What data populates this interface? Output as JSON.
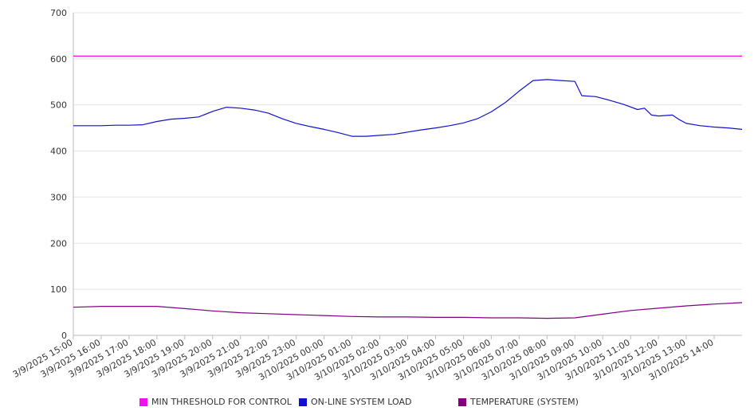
{
  "chart_data": {
    "type": "line",
    "title": "",
    "xlabel": "",
    "ylabel": "",
    "ylim": [
      0,
      700
    ],
    "yticks": [
      0,
      100,
      200,
      300,
      400,
      500,
      600,
      700
    ],
    "x_tick_labels": [
      "3/9/2025 15:00",
      "3/9/2025 16:00",
      "3/9/2025 17:00",
      "3/9/2025 18:00",
      "3/9/2025 19:00",
      "3/9/2025 20:00",
      "3/9/2025 21:00",
      "3/9/2025 22:00",
      "3/9/2025 23:00",
      "3/10/2025 00:00",
      "3/10/2025 01:00",
      "3/10/2025 02:00",
      "3/10/2025 03:00",
      "3/10/2025 04:00",
      "3/10/2025 05:00",
      "3/10/2025 06:00",
      "3/10/2025 07:00",
      "3/10/2025 08:00",
      "3/10/2025 09:00",
      "3/10/2025 10:00",
      "3/10/2025 11:00",
      "3/10/2025 12:00",
      "3/10/2025 13:00",
      "3/10/2025 14:00"
    ],
    "x_start": "3/9/2025 15:00",
    "x_end": "3/10/2025 15:00",
    "grid": true,
    "legend_position": "bottom",
    "series": [
      {
        "name": "MIN THRESHOLD FOR CONTROL",
        "color": "#ee11ee",
        "points": [
          [
            "3/9/2025 15:00",
            606
          ],
          [
            "3/10/2025 15:00",
            606
          ]
        ]
      },
      {
        "name": "ON-LINE SYSTEM LOAD",
        "color": "#1111cc",
        "points": [
          [
            "3/9/2025 15:00",
            455
          ],
          [
            "3/9/2025 15:30",
            455
          ],
          [
            "3/9/2025 16:00",
            455
          ],
          [
            "3/9/2025 16:30",
            456
          ],
          [
            "3/9/2025 17:00",
            456
          ],
          [
            "3/9/2025 17:30",
            457
          ],
          [
            "3/9/2025 18:00",
            464
          ],
          [
            "3/9/2025 18:30",
            469
          ],
          [
            "3/9/2025 19:00",
            471
          ],
          [
            "3/9/2025 19:30",
            474
          ],
          [
            "3/9/2025 20:00",
            486
          ],
          [
            "3/9/2025 20:30",
            495
          ],
          [
            "3/9/2025 21:00",
            493
          ],
          [
            "3/9/2025 21:30",
            489
          ],
          [
            "3/9/2025 22:00",
            482
          ],
          [
            "3/9/2025 22:30",
            470
          ],
          [
            "3/9/2025 23:00",
            460
          ],
          [
            "3/9/2025 23:30",
            453
          ],
          [
            "3/10/2025 00:00",
            447
          ],
          [
            "3/10/2025 00:30",
            440
          ],
          [
            "3/10/2025 01:00",
            432
          ],
          [
            "3/10/2025 01:30",
            432
          ],
          [
            "3/10/2025 02:00",
            434
          ],
          [
            "3/10/2025 02:30",
            436
          ],
          [
            "3/10/2025 03:00",
            441
          ],
          [
            "3/10/2025 03:30",
            446
          ],
          [
            "3/10/2025 04:00",
            450
          ],
          [
            "3/10/2025 04:30",
            455
          ],
          [
            "3/10/2025 05:00",
            461
          ],
          [
            "3/10/2025 05:30",
            470
          ],
          [
            "3/10/2025 06:00",
            485
          ],
          [
            "3/10/2025 06:30",
            505
          ],
          [
            "3/10/2025 07:00",
            530
          ],
          [
            "3/10/2025 07:30",
            553
          ],
          [
            "3/10/2025 08:00",
            555
          ],
          [
            "3/10/2025 08:30",
            553
          ],
          [
            "3/10/2025 09:00",
            551
          ],
          [
            "3/10/2025 09:15",
            520
          ],
          [
            "3/10/2025 09:45",
            518
          ],
          [
            "3/10/2025 10:15",
            510
          ],
          [
            "3/10/2025 10:45",
            501
          ],
          [
            "3/10/2025 11:15",
            490
          ],
          [
            "3/10/2025 11:30",
            493
          ],
          [
            "3/10/2025 11:45",
            478
          ],
          [
            "3/10/2025 12:00",
            476
          ],
          [
            "3/10/2025 12:30",
            478
          ],
          [
            "3/10/2025 12:45",
            468
          ],
          [
            "3/10/2025 13:00",
            460
          ],
          [
            "3/10/2025 13:30",
            455
          ],
          [
            "3/10/2025 14:00",
            452
          ],
          [
            "3/10/2025 14:30",
            450
          ],
          [
            "3/10/2025 15:00",
            447
          ]
        ]
      },
      {
        "name": "TEMPERATURE (SYSTEM)",
        "color": "#800080",
        "points": [
          [
            "3/9/2025 15:00",
            61
          ],
          [
            "3/9/2025 16:00",
            63
          ],
          [
            "3/9/2025 17:00",
            63
          ],
          [
            "3/9/2025 18:00",
            63
          ],
          [
            "3/9/2025 19:00",
            58
          ],
          [
            "3/9/2025 20:00",
            53
          ],
          [
            "3/9/2025 21:00",
            49
          ],
          [
            "3/9/2025 22:00",
            47
          ],
          [
            "3/9/2025 23:00",
            45
          ],
          [
            "3/10/2025 00:00",
            43
          ],
          [
            "3/10/2025 01:00",
            41
          ],
          [
            "3/10/2025 02:00",
            40
          ],
          [
            "3/10/2025 03:00",
            40
          ],
          [
            "3/10/2025 04:00",
            39
          ],
          [
            "3/10/2025 05:00",
            39
          ],
          [
            "3/10/2025 06:00",
            38
          ],
          [
            "3/10/2025 07:00",
            38
          ],
          [
            "3/10/2025 08:00",
            37
          ],
          [
            "3/10/2025 09:00",
            38
          ],
          [
            "3/10/2025 10:00",
            46
          ],
          [
            "3/10/2025 11:00",
            54
          ],
          [
            "3/10/2025 12:00",
            59
          ],
          [
            "3/10/2025 13:00",
            64
          ],
          [
            "3/10/2025 14:00",
            68
          ],
          [
            "3/10/2025 15:00",
            71
          ]
        ]
      }
    ]
  }
}
